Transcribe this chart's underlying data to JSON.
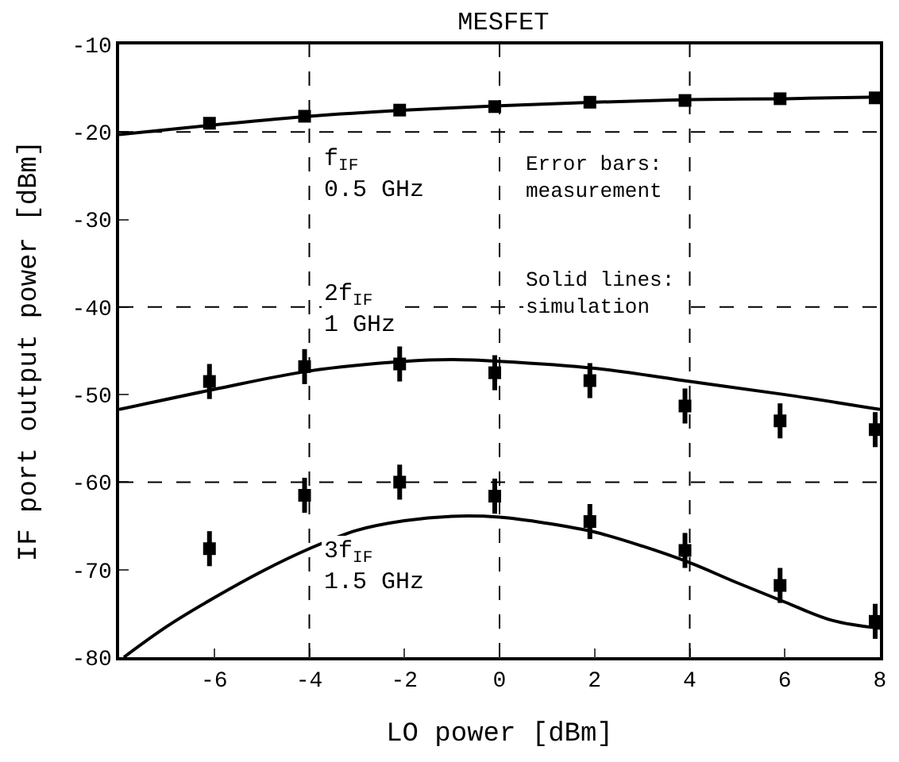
{
  "chart_data": {
    "type": "line",
    "title": "MESFET",
    "xlabel": "LO power [dBm]",
    "ylabel": "IF port output power [dBm]",
    "xlim": [
      -8,
      8
    ],
    "xticks": [
      -6,
      -4,
      -2,
      0,
      2,
      4,
      6,
      8
    ],
    "ylim": [
      -80,
      -10
    ],
    "yticks": [
      -80,
      -70,
      -60,
      -50,
      -40,
      -30,
      -20,
      -10
    ],
    "grid": false,
    "line_style": "solid",
    "series": [
      {
        "type": "line",
        "color": "#000000",
        "x": [
          -8,
          -6,
          -4,
          -2,
          0,
          2,
          4,
          6,
          8
        ],
        "values": [
          -20.3,
          -19.2,
          -18.2,
          -17.5,
          -17,
          -16.6,
          -16.3,
          -16.2,
          -16
        ]
      },
      {
        "type": "line",
        "color": "#000000",
        "x": [
          -8,
          -6,
          -4,
          -2,
          -1,
          0,
          2,
          4,
          6,
          8
        ],
        "values": [
          -51.7,
          -49.4,
          -47.3,
          -46.2,
          -46,
          -46.2,
          -47,
          -48.5,
          -50,
          -51.7
        ]
      },
      {
        "type": "line",
        "color": "#000000",
        "x": [
          -7.9,
          -7,
          -6,
          -5,
          -4,
          -3,
          -2,
          -1,
          0,
          1,
          2,
          3,
          4,
          5,
          6,
          7,
          8
        ],
        "values": [
          -80,
          -76.5,
          -73.2,
          -70.2,
          -67.6,
          -65.5,
          -64.4,
          -63.9,
          -64,
          -64.7,
          -65.7,
          -67.3,
          -69.2,
          -71.5,
          -73.7,
          -75.8,
          -76.7
        ]
      },
      {
        "type": "scatter",
        "marker": "square",
        "color": "#000000",
        "x": [
          -6.1,
          -4.1,
          -2.1,
          -0.1,
          1.9,
          3.9,
          5.9,
          7.9
        ],
        "values": [
          -19,
          -18.2,
          -17.5,
          -17.1,
          -16.6,
          -16.4,
          -16.2,
          -16.1
        ],
        "errors": [
          0.4,
          0.4,
          0.4,
          0.4,
          0.4,
          0.4,
          0.4,
          0.4
        ]
      },
      {
        "type": "scatter",
        "marker": "square",
        "color": "#000000",
        "x": [
          -6.1,
          -4.1,
          -2.1,
          -0.1,
          1.9,
          3.9,
          5.9,
          7.9
        ],
        "values": [
          -48.5,
          -46.8,
          -46.5,
          -47.5,
          -48.4,
          -51.3,
          -53,
          -54
        ],
        "errors": [
          2,
          2,
          2,
          2,
          2,
          2,
          2,
          2
        ]
      },
      {
        "type": "scatter",
        "marker": "square",
        "color": "#000000",
        "x": [
          -6.1,
          -4.1,
          -2.1,
          -0.1,
          1.9,
          3.9,
          5.9,
          7.9
        ],
        "values": [
          -67.6,
          -61.5,
          -60,
          -61.6,
          -64.5,
          -67.8,
          -71.8,
          -75.9
        ],
        "errors": [
          2,
          2,
          2,
          2,
          2,
          2,
          2,
          2
        ]
      }
    ],
    "ref_lines": [
      {
        "axis": "x",
        "value": -4,
        "color": "#000000",
        "line_style": "dashed"
      },
      {
        "axis": "x",
        "value": 0,
        "color": "#000000",
        "line_style": "dashed"
      },
      {
        "axis": "x",
        "value": 4,
        "color": "#000000",
        "line_style": "dashed"
      },
      {
        "axis": "y",
        "value": -20,
        "color": "#000000",
        "line_style": "dashed"
      },
      {
        "axis": "y",
        "value": -40,
        "color": "#000000",
        "line_style": "dashed"
      },
      {
        "axis": "y",
        "value": -60,
        "color": "#000000",
        "line_style": "dashed"
      }
    ],
    "annotations": [
      "f$_{IF}$\n0.5 GHz",
      "2f$_{IF}$\n1 GHz",
      "3f$_{IF}$\n1.5 GHz",
      "Error bars:\nmeasurement",
      "Solid lines:\nsimulation"
    ]
  }
}
